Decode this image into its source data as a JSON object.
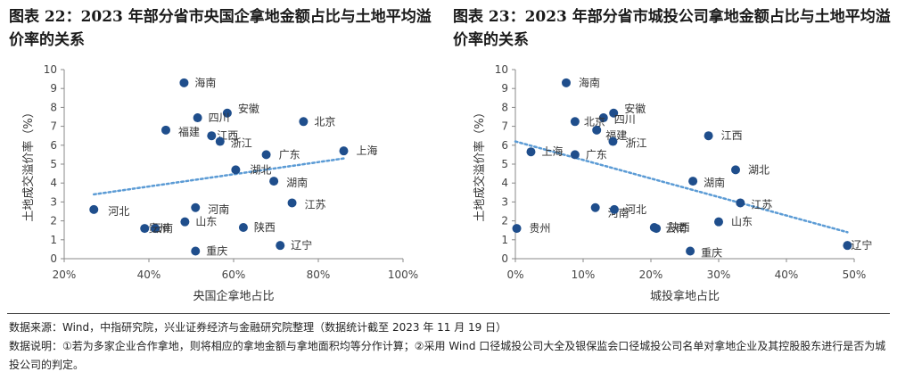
{
  "titles": {
    "left": "图表 22：2023 年部分省市央国企拿地金额占比与土地平均溢价率的关系",
    "right": "图表 23：2023 年部分省市城投公司拿地金额占比与土地平均溢价率的关系"
  },
  "footer": {
    "source": "数据来源：Wind，中指研究院，兴业证券经济与金融研究院整理（数据统计截至 2023 年 11 月 19 日）",
    "note": "数据说明：①若为多家企业合作拿地，则将相应的拿地金额与拿地面积均等分作计算；②采用 Wind 口径城投公司大全及银保监会口径城投公司名单对拿地企业及其控股股东进行是否为城投公司的判定。"
  },
  "colors": {
    "point": "#1f4e8c",
    "trend": "#5b9bd5",
    "axis": "#888888",
    "grid": "#dddddd"
  },
  "chart_data": [
    {
      "type": "scatter",
      "xlabel": "央国企拿地占比",
      "ylabel": "土地成交溢价率（%）",
      "xlim": [
        20,
        100
      ],
      "ylim": [
        0,
        10
      ],
      "x_unit": "%",
      "xticks": [
        20,
        40,
        60,
        80,
        100
      ],
      "yticks": [
        0,
        1,
        2,
        3,
        4,
        5,
        6,
        7,
        8,
        9,
        10
      ],
      "trendline": {
        "x": [
          27,
          86
        ],
        "y": [
          3.4,
          5.3
        ]
      },
      "points": [
        {
          "label": "海南",
          "x": 48.3,
          "y": 9.3
        },
        {
          "label": "安徽",
          "x": 58.5,
          "y": 7.7
        },
        {
          "label": "四川",
          "x": 51.5,
          "y": 7.45
        },
        {
          "label": "北京",
          "x": 76.5,
          "y": 7.25
        },
        {
          "label": "福建",
          "x": 44.0,
          "y": 6.8
        },
        {
          "label": "江西",
          "x": 54.8,
          "y": 6.5
        },
        {
          "label": "浙江",
          "x": 56.8,
          "y": 6.2
        },
        {
          "label": "上海",
          "x": 86.0,
          "y": 5.7
        },
        {
          "label": "广东",
          "x": 67.7,
          "y": 5.5
        },
        {
          "label": "湖北",
          "x": 60.5,
          "y": 4.7
        },
        {
          "label": "湖南",
          "x": 69.5,
          "y": 4.1
        },
        {
          "label": "江苏",
          "x": 73.8,
          "y": 2.95
        },
        {
          "label": "河北",
          "x": 27.0,
          "y": 2.6
        },
        {
          "label": "河南",
          "x": 51.0,
          "y": 2.7
        },
        {
          "label": "山东",
          "x": 48.5,
          "y": 1.95
        },
        {
          "label": "贵州",
          "x": 39.0,
          "y": 1.6
        },
        {
          "label": "云南",
          "x": 41.5,
          "y": 1.6
        },
        {
          "label": "陕西",
          "x": 62.3,
          "y": 1.65
        },
        {
          "label": "辽宁",
          "x": 71.0,
          "y": 0.7
        },
        {
          "label": "重庆",
          "x": 51.0,
          "y": 0.4
        }
      ]
    },
    {
      "type": "scatter",
      "xlabel": "城投拿地占比",
      "ylabel": "土地成交溢价率（%）",
      "xlim": [
        0,
        50
      ],
      "ylim": [
        0,
        10
      ],
      "x_unit": "%",
      "xticks": [
        0,
        10,
        20,
        30,
        40,
        50
      ],
      "yticks": [
        0,
        1,
        2,
        3,
        4,
        5,
        6,
        7,
        8,
        9,
        10
      ],
      "trendline": {
        "x": [
          0,
          49
        ],
        "y": [
          6.2,
          1.4
        ]
      },
      "points": [
        {
          "label": "海南",
          "x": 7.5,
          "y": 9.3
        },
        {
          "label": "安徽",
          "x": 14.5,
          "y": 7.7
        },
        {
          "label": "四川",
          "x": 13.0,
          "y": 7.45
        },
        {
          "label": "北京",
          "x": 8.8,
          "y": 7.25
        },
        {
          "label": "福建",
          "x": 12.0,
          "y": 6.8
        },
        {
          "label": "浙江",
          "x": 14.4,
          "y": 6.2
        },
        {
          "label": "江西",
          "x": 28.5,
          "y": 6.5
        },
        {
          "label": "上海",
          "x": 2.3,
          "y": 5.65
        },
        {
          "label": "广东",
          "x": 8.8,
          "y": 5.5
        },
        {
          "label": "湖北",
          "x": 32.5,
          "y": 4.7
        },
        {
          "label": "湖南",
          "x": 26.2,
          "y": 4.1
        },
        {
          "label": "江苏",
          "x": 33.2,
          "y": 2.95
        },
        {
          "label": "河南",
          "x": 11.8,
          "y": 2.7
        },
        {
          "label": "河北",
          "x": 14.6,
          "y": 2.6
        },
        {
          "label": "山东",
          "x": 30.0,
          "y": 1.95
        },
        {
          "label": "陕西",
          "x": 20.5,
          "y": 1.65
        },
        {
          "label": "云南",
          "x": 20.8,
          "y": 1.6
        },
        {
          "label": "贵州",
          "x": 0.2,
          "y": 1.6
        },
        {
          "label": "辽宁",
          "x": 49.0,
          "y": 0.7
        },
        {
          "label": "重庆",
          "x": 25.8,
          "y": 0.4
        }
      ]
    }
  ]
}
